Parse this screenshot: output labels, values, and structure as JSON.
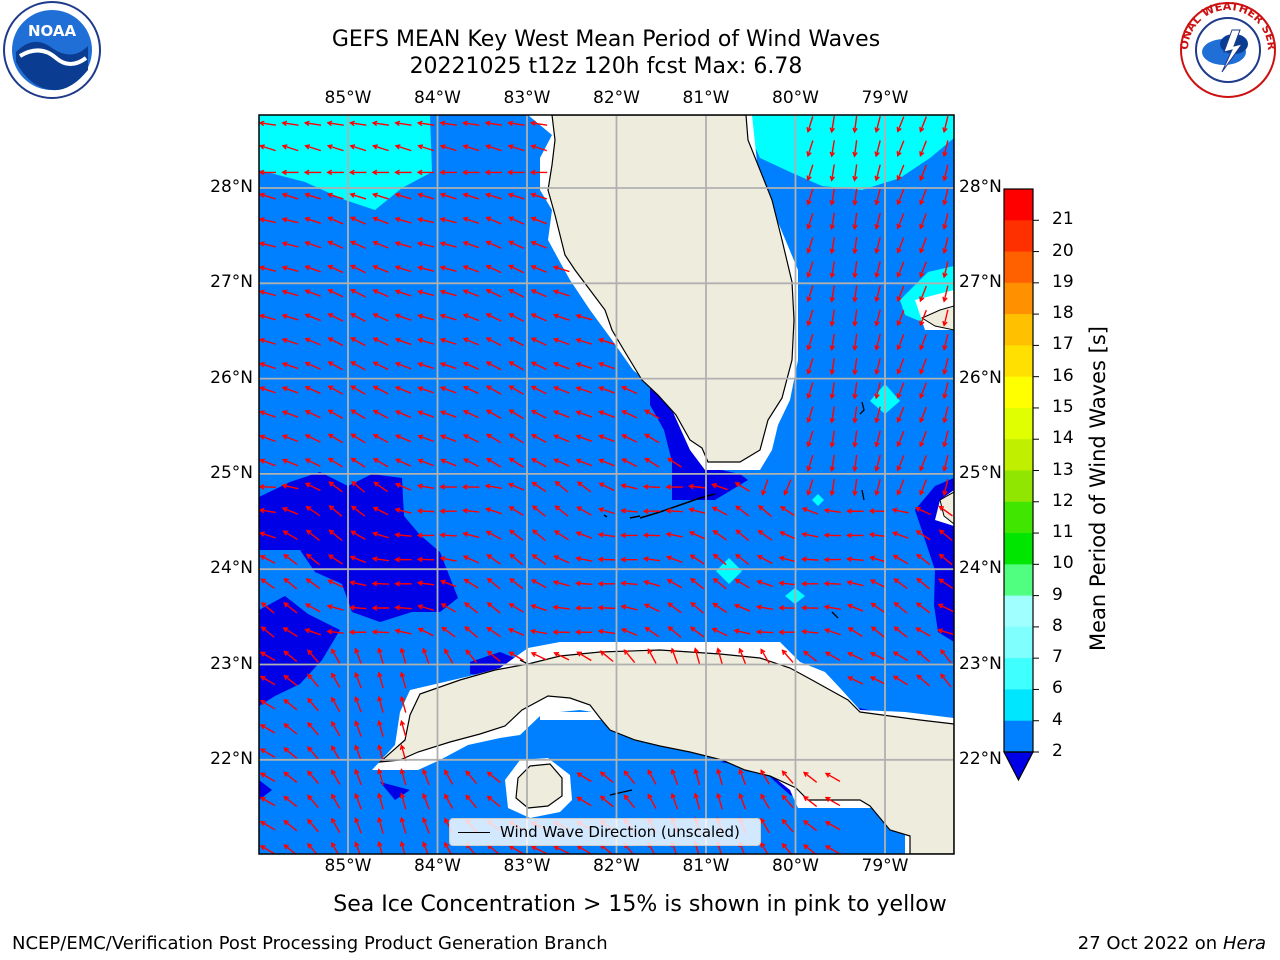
{
  "title": {
    "line1": "GEFS MEAN Key West Mean Period of Wind Waves",
    "line2": "20221025 t12z 120h fcst   Max: 6.78"
  },
  "map": {
    "lon_ticks": [
      "85°W",
      "84°W",
      "83°W",
      "82°W",
      "81°W",
      "80°W",
      "79°W"
    ],
    "lat_ticks": [
      "28°N",
      "27°N",
      "26°N",
      "25°N",
      "24°N",
      "23°N",
      "22°N"
    ],
    "colors": {
      "land": "#eeeddd",
      "coast": "#000000",
      "grid": "#b0b0b0",
      "arrow": "#ff0000",
      "class_2_4": "#0080ff",
      "class_below_2": "#0000e6",
      "class_4_6": "#00ffff",
      "nodata": "#ffffff"
    }
  },
  "legend": {
    "label": "Wind Wave Direction (unscaled)"
  },
  "colorbar": {
    "label": "Mean Period of Wind Waves [s]",
    "ticks": [
      "2",
      "4",
      "6",
      "7",
      "8",
      "9",
      "10",
      "11",
      "12",
      "13",
      "14",
      "15",
      "16",
      "17",
      "18",
      "19",
      "20",
      "21"
    ],
    "colors": [
      "#0080ff",
      "#00e6ff",
      "#40ffff",
      "#80ffff",
      "#a0ffff",
      "#50ff80",
      "#00e600",
      "#40e600",
      "#90e600",
      "#c0f000",
      "#e0ff00",
      "#ffff00",
      "#ffe000",
      "#ffc000",
      "#ff9000",
      "#ff6000",
      "#ff3000",
      "#ff0000"
    ],
    "under_color": "#0000e6"
  },
  "subtitle": "Sea Ice Concentration > 15% is shown in pink to yellow",
  "footer": {
    "left": "NCEP/EMC/Verification Post Processing Product Generation Branch",
    "date": "27 Oct 2022 on ",
    "machine": "Hera"
  },
  "logos": {
    "noaa_text": "NOAA",
    "noaa_icon": "noaa-logo-icon",
    "nws_text": "NATIONAL WEATHER SERVICE",
    "nws_icon": "nws-logo-icon"
  }
}
